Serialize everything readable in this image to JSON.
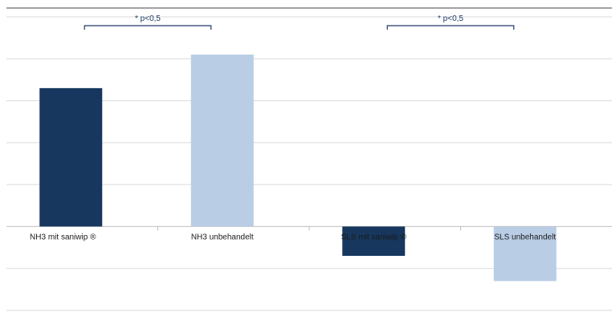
{
  "chart_data": {
    "type": "bar",
    "categories": [
      "NH3 mit saniwip ®",
      "NH3 unbehandelt",
      "SLS mit saniwip ®",
      "SLS unbehandelt"
    ],
    "values": [
      3.3,
      4.1,
      -0.7,
      -1.3
    ],
    "ylim": [
      -2,
      5
    ],
    "grid": true,
    "colors": [
      "#17375e",
      "#b9cde5",
      "#17375e",
      "#b9cde5"
    ],
    "annotations": [
      {
        "text": "* p<0,5",
        "from": 0,
        "to": 1
      },
      {
        "text": "* p<0,5",
        "from": 2,
        "to": 3
      }
    ]
  }
}
